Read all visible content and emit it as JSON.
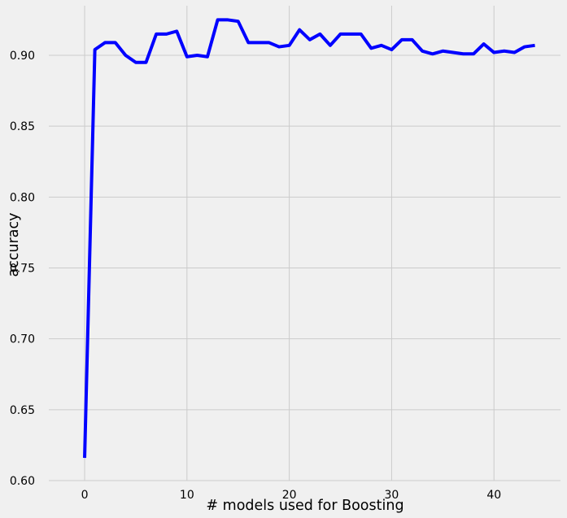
{
  "chart_data": {
    "type": "line",
    "title": "",
    "xlabel": "# models used for Boosting",
    "ylabel": "accuracy",
    "xlim": [
      -3.5,
      46.5
    ],
    "ylim": [
      0.6,
      0.935
    ],
    "xticks": [
      0,
      10,
      20,
      30,
      40
    ],
    "yticks": [
      0.6,
      0.65,
      0.7,
      0.75,
      0.8,
      0.85,
      0.9
    ],
    "xtick_labels": [
      "0",
      "10",
      "20",
      "30",
      "40"
    ],
    "ytick_labels": [
      "0.60",
      "0.65",
      "0.70",
      "0.75",
      "0.80",
      "0.85",
      "0.90"
    ],
    "grid": true,
    "series": [
      {
        "color": "#0000ff",
        "x": [
          0,
          1,
          2,
          3,
          4,
          5,
          6,
          7,
          8,
          9,
          10,
          11,
          12,
          13,
          14,
          15,
          16,
          17,
          18,
          19,
          20,
          21,
          22,
          23,
          24,
          25,
          26,
          27,
          28,
          29,
          30,
          31,
          32,
          33,
          34,
          35,
          36,
          37,
          38,
          39,
          40,
          41,
          42,
          43,
          44
        ],
        "values": [
          0.616,
          0.904,
          0.909,
          0.909,
          0.9,
          0.895,
          0.895,
          0.915,
          0.915,
          0.917,
          0.899,
          0.9,
          0.899,
          0.925,
          0.925,
          0.924,
          0.909,
          0.909,
          0.909,
          0.906,
          0.907,
          0.918,
          0.911,
          0.915,
          0.907,
          0.915,
          0.915,
          0.915,
          0.905,
          0.907,
          0.904,
          0.911,
          0.911,
          0.903,
          0.901,
          0.903,
          0.902,
          0.901,
          0.901,
          0.908,
          0.902,
          0.903,
          0.902,
          0.906,
          0.907
        ]
      }
    ]
  }
}
